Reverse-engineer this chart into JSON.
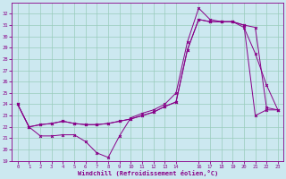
{
  "xlabel": "Windchill (Refroidissement éolien,°C)",
  "bg_color": "#cce8f0",
  "grid_color": "#99ccbb",
  "line_color": "#880088",
  "xlim": [
    -0.5,
    23.5
  ],
  "ylim": [
    19,
    33
  ],
  "xticks": [
    0,
    1,
    2,
    3,
    4,
    5,
    6,
    7,
    8,
    9,
    10,
    11,
    12,
    13,
    14,
    16,
    17,
    18,
    19,
    20,
    21,
    22,
    23
  ],
  "yticks": [
    19,
    20,
    21,
    22,
    23,
    24,
    25,
    26,
    27,
    28,
    29,
    30,
    31,
    32
  ],
  "curve1_x": [
    0,
    1,
    2,
    3,
    4,
    5,
    6,
    7,
    8,
    9,
    10,
    11,
    12,
    13,
    14,
    15,
    16,
    17,
    18,
    19,
    20,
    21,
    22,
    23
  ],
  "curve1_y": [
    24.0,
    22.0,
    21.2,
    21.2,
    21.3,
    21.3,
    20.7,
    19.7,
    19.3,
    21.2,
    22.8,
    23.2,
    23.5,
    24.0,
    25.0,
    29.5,
    32.5,
    31.5,
    31.3,
    31.3,
    30.8,
    28.5,
    25.7,
    23.5
  ],
  "curve2_x": [
    0,
    1,
    2,
    3,
    4,
    5,
    6,
    7,
    8,
    9,
    10,
    11,
    12,
    13,
    14,
    15,
    16,
    17,
    18,
    19,
    20,
    21,
    22,
    23
  ],
  "curve2_y": [
    24.0,
    22.0,
    22.2,
    22.3,
    22.5,
    22.3,
    22.2,
    22.2,
    22.3,
    22.5,
    22.7,
    23.0,
    23.3,
    23.8,
    24.2,
    28.8,
    31.5,
    31.3,
    31.3,
    31.3,
    31.0,
    30.8,
    23.7,
    23.5
  ],
  "curve3_x": [
    0,
    1,
    2,
    3,
    4,
    5,
    6,
    7,
    8,
    9,
    10,
    11,
    12,
    13,
    14,
    15,
    16,
    17,
    18,
    19,
    20,
    21,
    22,
    23
  ],
  "curve3_y": [
    24.0,
    22.0,
    22.2,
    22.3,
    22.5,
    22.3,
    22.2,
    22.2,
    22.3,
    22.5,
    22.7,
    23.0,
    23.3,
    23.8,
    24.2,
    28.8,
    31.5,
    31.3,
    31.3,
    31.3,
    31.0,
    23.0,
    23.5,
    23.5
  ]
}
